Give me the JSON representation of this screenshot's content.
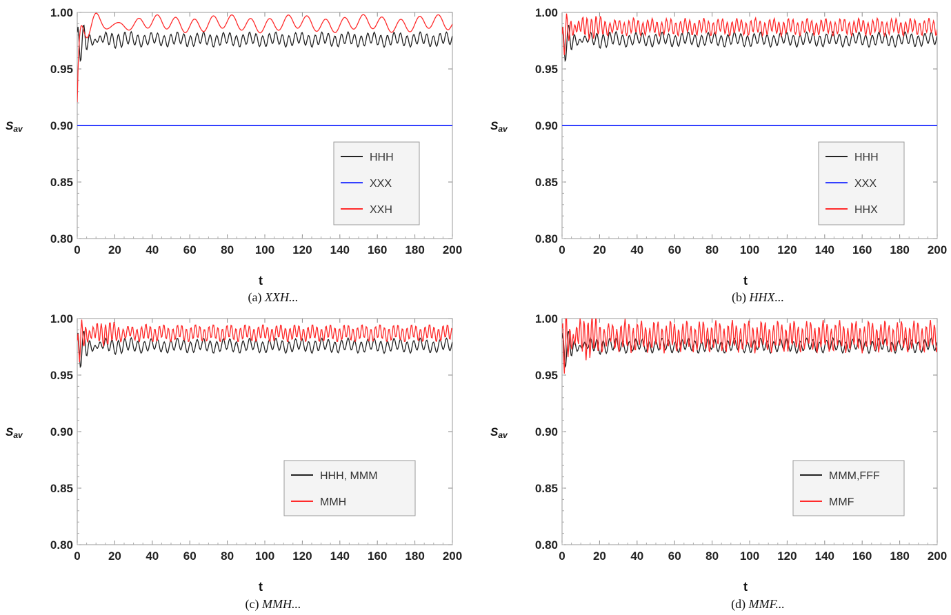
{
  "figure_captions": [
    {
      "label": "(a)",
      "text": "XXH..."
    },
    {
      "label": "(b)",
      "text": "HHX..."
    },
    {
      "label": "(c)",
      "text": "MMH..."
    },
    {
      "label": "(d)",
      "text": "MMF..."
    }
  ],
  "colors": {
    "black": "#222222",
    "blue": "#3340ff",
    "red": "#ff2a2a"
  },
  "chart_data": [
    {
      "type": "line",
      "caption": "(a) XXH...",
      "xlabel": "t",
      "ylabel": "Sav",
      "xlim": [
        0,
        200
      ],
      "ylim": [
        0.8,
        1.0
      ],
      "xticks": [
        "0",
        "20",
        "40",
        "60",
        "80",
        "100",
        "120",
        "140",
        "160",
        "180",
        "200"
      ],
      "yticks": [
        "0.80",
        "0.85",
        "0.90",
        "0.95",
        "1.00"
      ],
      "legend_position": "right",
      "series": [
        {
          "name": "HHH",
          "color": "black",
          "start": 0.96,
          "base": 0.976,
          "amp": 0.005,
          "period": 3.5,
          "transient": 0.022,
          "decay": 8
        },
        {
          "name": "XXX",
          "color": "blue",
          "start": 0.9,
          "base": 0.9,
          "amp": 0,
          "period": 10,
          "transient": 0,
          "decay": 1
        },
        {
          "name": "XXH",
          "color": "red",
          "start": 0.9,
          "base": 0.99,
          "amp": 0.006,
          "period": 10,
          "transient": 0.02,
          "decay": 12
        }
      ]
    },
    {
      "type": "line",
      "caption": "(b) HHX...",
      "xlabel": "t",
      "ylabel": "Sav",
      "xlim": [
        0,
        200
      ],
      "ylim": [
        0.8,
        1.0
      ],
      "xticks": [
        "0",
        "20",
        "40",
        "60",
        "80",
        "100",
        "120",
        "140",
        "160",
        "180",
        "200"
      ],
      "yticks": [
        "0.80",
        "0.85",
        "0.90",
        "0.95",
        "1.00"
      ],
      "legend_position": "right",
      "series": [
        {
          "name": "HHH",
          "color": "black",
          "start": 0.96,
          "base": 0.976,
          "amp": 0.005,
          "period": 3.5,
          "transient": 0.022,
          "decay": 8
        },
        {
          "name": "XXX",
          "color": "blue",
          "start": 0.9,
          "base": 0.9,
          "amp": 0,
          "period": 10,
          "transient": 0,
          "decay": 1
        },
        {
          "name": "HHX",
          "color": "red",
          "start": 0.96,
          "base": 0.987,
          "amp": 0.006,
          "period": 2.5,
          "transient": 0.02,
          "decay": 10
        }
      ]
    },
    {
      "type": "line",
      "caption": "(c) MMH...",
      "xlabel": "t",
      "ylabel": "Sav",
      "xlim": [
        0,
        200
      ],
      "ylim": [
        0.8,
        1.0
      ],
      "xticks": [
        "0",
        "20",
        "40",
        "60",
        "80",
        "100",
        "120",
        "140",
        "160",
        "180",
        "200"
      ],
      "yticks": [
        "0.80",
        "0.85",
        "0.90",
        "0.95",
        "1.00"
      ],
      "legend_position": "right",
      "series": [
        {
          "name": "HHH, MMM",
          "color": "black",
          "start": 0.96,
          "base": 0.976,
          "amp": 0.005,
          "period": 3.5,
          "transient": 0.022,
          "decay": 8
        },
        {
          "name": "MMH",
          "color": "red",
          "start": 0.96,
          "base": 0.987,
          "amp": 0.006,
          "period": 2.4,
          "transient": 0.02,
          "decay": 10
        }
      ]
    },
    {
      "type": "line",
      "caption": "(d) MMF...",
      "xlabel": "t",
      "ylabel": "Sav",
      "xlim": [
        0,
        200
      ],
      "ylim": [
        0.8,
        1.0
      ],
      "xticks": [
        "0",
        "20",
        "40",
        "60",
        "80",
        "100",
        "120",
        "140",
        "160",
        "180",
        "200"
      ],
      "yticks": [
        "0.80",
        "0.85",
        "0.90",
        "0.95",
        "1.00"
      ],
      "legend_position": "right",
      "series": [
        {
          "name": "MMM,FFF",
          "color": "black",
          "start": 0.96,
          "base": 0.976,
          "amp": 0.005,
          "period": 3.5,
          "transient": 0.022,
          "decay": 8
        },
        {
          "name": "MMF",
          "color": "red",
          "start": 0.96,
          "base": 0.984,
          "amp": 0.011,
          "period": 2.2,
          "transient": 0.03,
          "decay": 10
        }
      ]
    }
  ]
}
